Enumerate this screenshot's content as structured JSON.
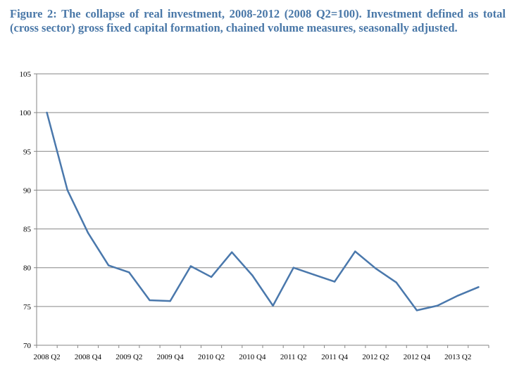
{
  "chart_data": {
    "type": "line",
    "title": "Figure 2:  The collapse of real investment, 2008-2012 (2008 Q2=100). Investment defined as total (cross sector) gross fixed capital formation, chained volume measures, seasonally adjusted.",
    "xlabel": "",
    "ylabel": "",
    "ylim": [
      70,
      105
    ],
    "yticks": [
      "70",
      "75",
      "80",
      "85",
      "90",
      "95",
      "100",
      "105"
    ],
    "x": [
      "2008 Q2",
      "2008 Q3",
      "2008 Q4",
      "2009 Q1",
      "2009 Q2",
      "2009 Q3",
      "2009 Q4",
      "2010 Q1",
      "2010 Q2",
      "2010 Q3",
      "2010 Q4",
      "2011 Q1",
      "2011 Q2",
      "2011 Q3",
      "2011 Q4",
      "2012 Q1",
      "2012 Q2",
      "2012 Q3",
      "2012 Q4",
      "2013 Q1",
      "2013 Q2",
      "2013 Q3"
    ],
    "xtick_labels": [
      "2008 Q2",
      "2008 Q4",
      "2009 Q2",
      "2009 Q4",
      "2010 Q2",
      "2010 Q4",
      "2011 Q2",
      "2011 Q4",
      "2012 Q2",
      "2012 Q4",
      "2013 Q2"
    ],
    "series": [
      {
        "color": "#4a78ac",
        "values": [
          100,
          90,
          84.5,
          80.3,
          79.4,
          75.8,
          75.7,
          80.2,
          78.8,
          82.0,
          79.0,
          75.1,
          80.0,
          79.1,
          78.2,
          82.1,
          79.9,
          78.1,
          74.5,
          75.1,
          76.4,
          77.5
        ]
      }
    ],
    "grid": true,
    "legend": "none"
  }
}
